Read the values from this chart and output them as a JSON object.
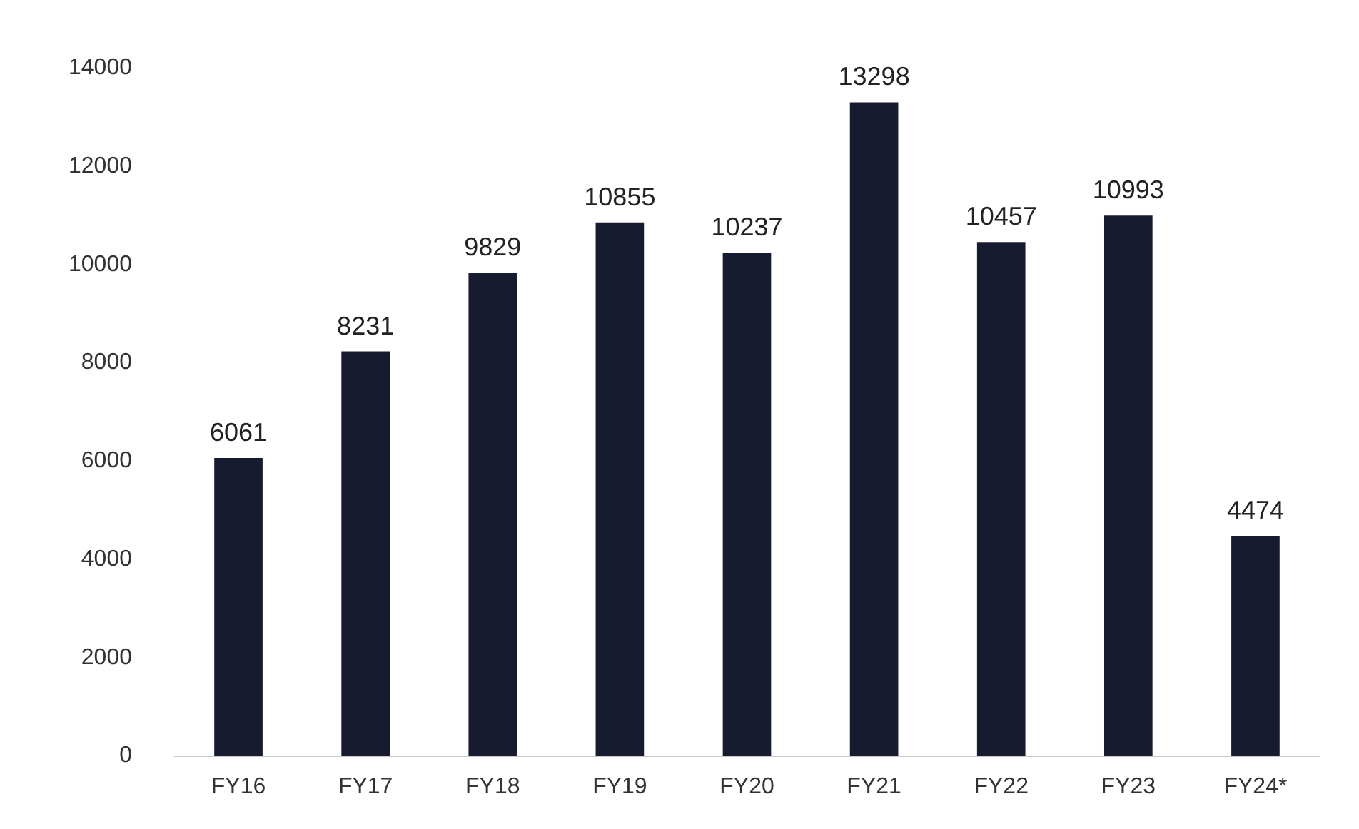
{
  "chart_data": {
    "type": "bar",
    "categories": [
      "FY16",
      "FY17",
      "FY18",
      "FY19",
      "FY20",
      "FY21",
      "FY22",
      "FY23",
      "FY24*"
    ],
    "values": [
      6061,
      8231,
      9829,
      10855,
      10237,
      13298,
      10457,
      10993,
      4474
    ],
    "color": "#161b2f",
    "ylim": [
      0,
      14000
    ],
    "yticks": [
      0,
      2000,
      4000,
      6000,
      8000,
      10000,
      12000,
      14000
    ],
    "grid": false,
    "legend": false,
    "data_labels": true
  }
}
